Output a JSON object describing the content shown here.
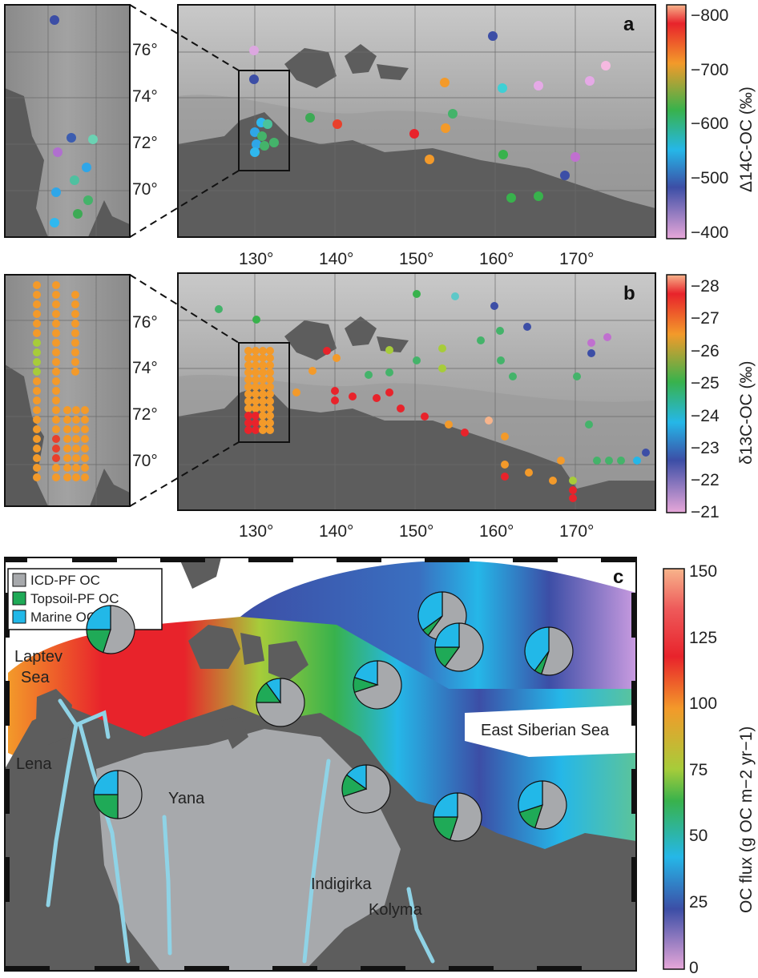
{
  "panel_a": {
    "label": "a",
    "lat_ticks": [
      "76°",
      "74°",
      "72°",
      "70°"
    ],
    "lon_ticks": [
      "130°",
      "140°",
      "150°",
      "160°",
      "170°"
    ],
    "colorbar": {
      "title": "Δ14C-OC (‰)",
      "ticks": [
        "−800",
        "−700",
        "−600",
        "−500",
        "−400"
      ]
    }
  },
  "panel_b": {
    "label": "b",
    "lat_ticks": [
      "76°",
      "74°",
      "72°",
      "70°"
    ],
    "lon_ticks": [
      "130°",
      "140°",
      "150°",
      "160°",
      "170°"
    ],
    "colorbar": {
      "title": "δ13C-OC (‰)",
      "ticks": [
        "−28",
        "−27",
        "−26",
        "−25",
        "−24",
        "−23",
        "−22",
        "−21"
      ]
    }
  },
  "panel_c": {
    "label": "c",
    "legend": [
      {
        "label": "ICD-PF OC",
        "color": "#a7a9ac"
      },
      {
        "label": "Topsoil-PF OC",
        "color": "#1faa57"
      },
      {
        "label": "Marine OC",
        "color": "#22b8e8"
      }
    ],
    "places": [
      "Laptev",
      "Sea",
      "East Siberian Sea",
      "Lena",
      "Yana",
      "Indigirka",
      "Kolyma"
    ],
    "colorbar": {
      "title": "OC flux (g OC m−2 yr−1)",
      "ticks": [
        "150",
        "125",
        "100",
        "75",
        "50",
        "25",
        "0"
      ]
    },
    "pies": [
      {
        "icd": 0.55,
        "topsoil": 0.2,
        "marine": 0.25
      },
      {
        "icd": 0.6,
        "topsoil": 0.05,
        "marine": 0.35
      },
      {
        "icd": 0.7,
        "topsoil": 0.1,
        "marine": 0.2
      },
      {
        "icd": 0.6,
        "topsoil": 0.15,
        "marine": 0.25
      },
      {
        "icd": 0.55,
        "topsoil": 0.05,
        "marine": 0.4
      },
      {
        "icd": 0.75,
        "topsoil": 0.15,
        "marine": 0.1
      },
      {
        "icd": 0.5,
        "topsoil": 0.25,
        "marine": 0.25
      },
      {
        "icd": 0.7,
        "topsoil": 0.15,
        "marine": 0.15
      },
      {
        "icd": 0.55,
        "topsoil": 0.2,
        "marine": 0.25
      },
      {
        "icd": 0.55,
        "topsoil": 0.15,
        "marine": 0.3
      }
    ]
  },
  "colors": {
    "accent_frame": "#111111"
  }
}
